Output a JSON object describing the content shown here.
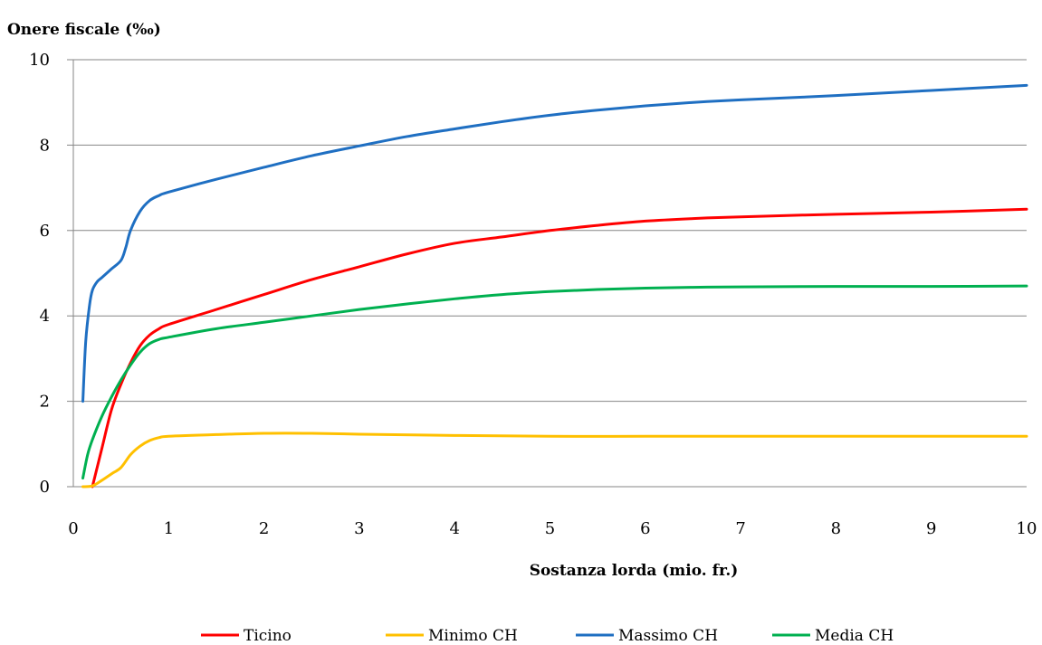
{
  "chart_data": {
    "type": "line",
    "ylabel": "Onere fiscale (‰)",
    "xlabel": "Sostanza lorda (mio. fr.)",
    "xlim": [
      0,
      10
    ],
    "ylim": [
      0,
      10
    ],
    "xticks": [
      0,
      1,
      2,
      3,
      4,
      5,
      6,
      7,
      8,
      9,
      10
    ],
    "yticks": [
      0,
      2,
      4,
      6,
      8,
      10
    ],
    "grid": "horizontal",
    "legend_position": "bottom",
    "series": [
      {
        "name": "Ticino",
        "color": "#ff0000",
        "x": [
          0.2,
          0.3,
          0.4,
          0.5,
          0.6,
          0.7,
          0.8,
          0.9,
          1.0,
          1.5,
          2,
          2.5,
          3,
          3.5,
          4,
          4.5,
          5,
          5.5,
          6,
          6.5,
          7,
          8,
          9,
          10
        ],
        "y": [
          0.0,
          0.9,
          1.8,
          2.4,
          2.9,
          3.3,
          3.55,
          3.7,
          3.8,
          4.15,
          4.5,
          4.85,
          5.15,
          5.45,
          5.7,
          5.85,
          6.0,
          6.12,
          6.22,
          6.28,
          6.32,
          6.38,
          6.43,
          6.5
        ]
      },
      {
        "name": "Minimo CH",
        "color": "#ffc000",
        "x": [
          0.1,
          0.2,
          0.3,
          0.4,
          0.5,
          0.6,
          0.7,
          0.8,
          0.9,
          1.0,
          1.5,
          2,
          2.5,
          3,
          4,
          5,
          6,
          7,
          8,
          9,
          10
        ],
        "y": [
          0.0,
          0.02,
          0.15,
          0.3,
          0.45,
          0.75,
          0.95,
          1.08,
          1.15,
          1.18,
          1.22,
          1.25,
          1.25,
          1.23,
          1.2,
          1.18,
          1.18,
          1.18,
          1.18,
          1.18,
          1.18
        ]
      },
      {
        "name": "Massimo CH",
        "color": "#1f6fc2",
        "x": [
          0.1,
          0.13,
          0.17,
          0.2,
          0.25,
          0.3,
          0.4,
          0.5,
          0.55,
          0.6,
          0.7,
          0.8,
          0.9,
          1.0,
          1.5,
          2,
          2.5,
          3,
          3.5,
          4,
          4.5,
          5,
          5.5,
          6,
          6.5,
          7,
          8,
          9,
          10
        ],
        "y": [
          2.0,
          3.4,
          4.25,
          4.6,
          4.8,
          4.9,
          5.1,
          5.3,
          5.6,
          6.0,
          6.45,
          6.7,
          6.82,
          6.9,
          7.2,
          7.48,
          7.75,
          7.98,
          8.2,
          8.38,
          8.55,
          8.7,
          8.82,
          8.92,
          9.0,
          9.06,
          9.16,
          9.28,
          9.4
        ]
      },
      {
        "name": "Media CH",
        "color": "#00b050",
        "x": [
          0.1,
          0.15,
          0.2,
          0.3,
          0.4,
          0.5,
          0.6,
          0.7,
          0.8,
          0.9,
          1.0,
          1.5,
          2,
          2.5,
          3,
          3.5,
          4,
          4.5,
          5,
          5.5,
          6,
          6.5,
          7,
          8,
          9,
          10
        ],
        "y": [
          0.2,
          0.75,
          1.1,
          1.65,
          2.1,
          2.5,
          2.85,
          3.15,
          3.35,
          3.45,
          3.5,
          3.7,
          3.85,
          4.0,
          4.15,
          4.28,
          4.4,
          4.5,
          4.57,
          4.62,
          4.65,
          4.67,
          4.68,
          4.69,
          4.69,
          4.7
        ]
      }
    ]
  }
}
